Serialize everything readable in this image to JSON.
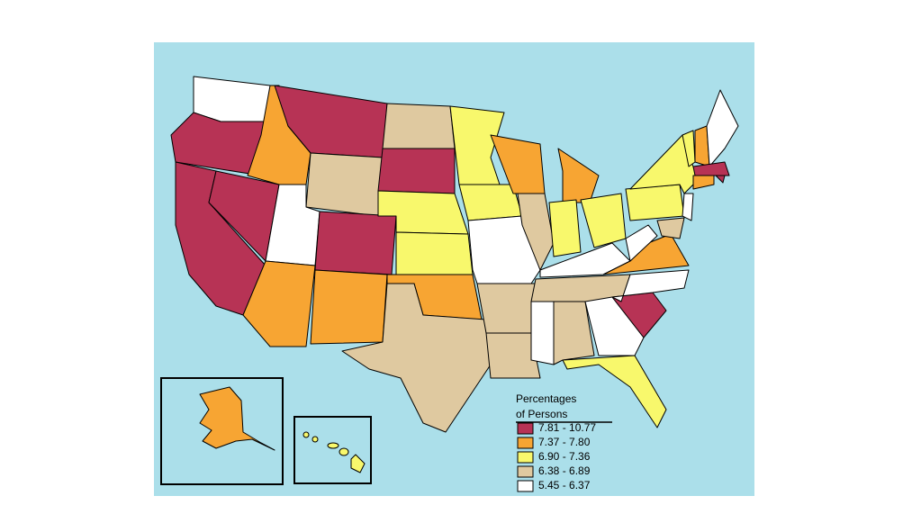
{
  "legend": {
    "title_lines": [
      "Percentages",
      "of Persons"
    ],
    "items": [
      {
        "label": "7.81 - 10.77",
        "color": "#b73355"
      },
      {
        "label": "7.37 - 7.80",
        "color": "#f7a533"
      },
      {
        "label": "6.90 - 7.36",
        "color": "#f8f86c"
      },
      {
        "label": "6.38 - 6.89",
        "color": "#dfc9a0"
      },
      {
        "label": "5.45 - 6.37",
        "color": "#ffffff"
      }
    ]
  },
  "map_background": "#abdfea"
}
